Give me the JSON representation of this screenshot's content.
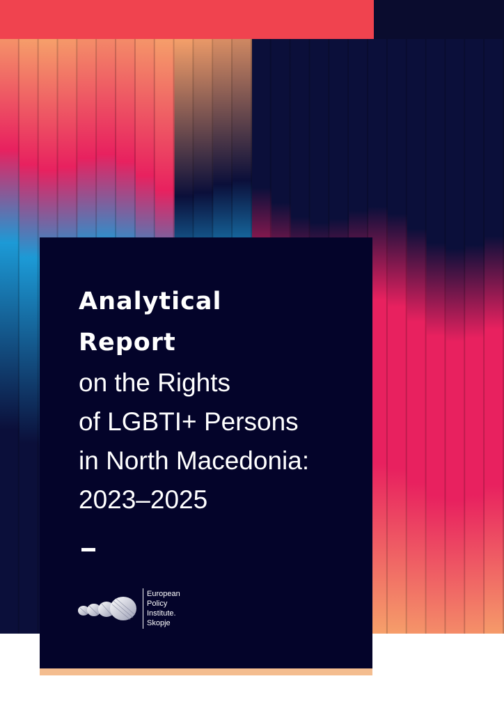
{
  "cover": {
    "title_bold": [
      "Analytical",
      "Report"
    ],
    "title_light": [
      "on the Rights",
      "of LGBTI+ Persons",
      "in North Macedonia:",
      "2023–2025"
    ]
  },
  "logo": {
    "lines": [
      "European",
      "Policy",
      "Institute.",
      "Skopje"
    ]
  },
  "colors": {
    "top_bar_red": "#f0434f",
    "top_bar_navy": "#0a0c2e",
    "panel_navy": "#04042a",
    "panel_underline": "#f4bd8f",
    "stripe_blue": "#1c9ad6",
    "stripe_pink": "#e8215f",
    "stripe_orange": "#f6a06a",
    "stripe_dark": "#0b0f3a"
  }
}
